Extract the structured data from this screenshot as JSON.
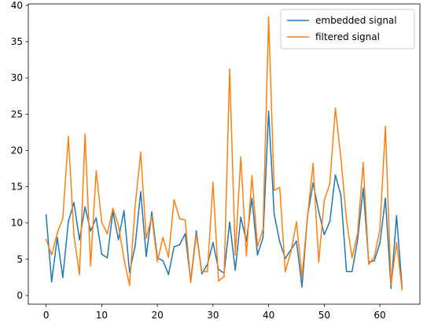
{
  "chart_data": {
    "type": "line",
    "title": "",
    "xlabel": "",
    "ylabel": "",
    "xlim": [
      -3.2,
      67.2
    ],
    "ylim": [
      -1.2,
      40.2
    ],
    "xticks": [
      0,
      10,
      20,
      30,
      40,
      50,
      60
    ],
    "yticks": [
      0,
      5,
      10,
      15,
      20,
      25,
      30,
      35,
      40
    ],
    "grid": false,
    "legend_position": "top-right",
    "series": [
      {
        "name": "embedded signal",
        "color": "#1f77b4",
        "values": [
          11.1,
          1.9,
          8.0,
          2.5,
          10.2,
          12.8,
          7.7,
          12.2,
          8.9,
          10.7,
          5.7,
          5.2,
          11.6,
          7.7,
          11.7,
          3.2,
          6.8,
          14.3,
          5.4,
          11.5,
          5.2,
          4.8,
          2.9,
          6.7,
          7.0,
          8.5,
          2.0,
          8.9,
          3.0,
          4.3,
          7.3,
          3.6,
          3.1,
          10.1,
          3.5,
          10.8,
          7.5,
          13.4,
          5.6,
          8.0,
          25.4,
          11.2,
          7.4,
          5.1,
          6.3,
          7.5,
          1.2,
          11.0,
          15.5,
          11.6,
          8.4,
          10.2,
          16.6,
          13.8,
          3.3,
          3.3,
          7.7,
          14.8,
          4.6,
          4.8,
          7.2,
          13.4,
          1.0,
          11.0,
          1.0
        ]
      },
      {
        "name": "filtered signal",
        "color": "#ff7f0e",
        "values": [
          7.7,
          5.6,
          8.6,
          10.6,
          21.9,
          8.3,
          2.9,
          22.2,
          4.1,
          17.2,
          10.1,
          8.5,
          12.0,
          9.7,
          5.0,
          1.4,
          12.3,
          19.7,
          7.9,
          10.9,
          4.7,
          8.0,
          5.3,
          13.2,
          10.6,
          10.4,
          1.8,
          8.4,
          3.3,
          3.3,
          15.6,
          2.0,
          2.6,
          31.2,
          5.6,
          19.1,
          5.5,
          16.5,
          6.8,
          9.1,
          38.4,
          14.5,
          14.9,
          3.3,
          6.0,
          10.1,
          2.6,
          10.9,
          18.2,
          4.6,
          13.1,
          15.4,
          25.8,
          18.9,
          10.4,
          5.2,
          8.6,
          18.3,
          4.3,
          5.3,
          9.1,
          23.3,
          1.5,
          7.3,
          0.8
        ]
      }
    ]
  }
}
